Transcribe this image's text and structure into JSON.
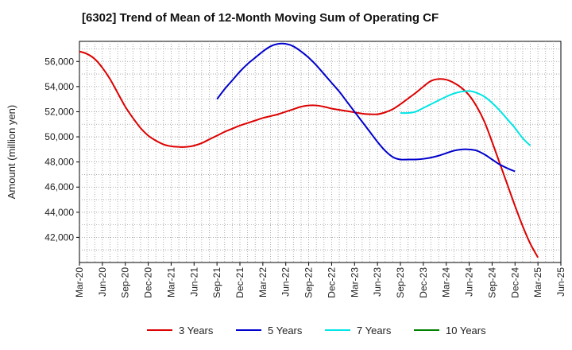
{
  "chart_data": {
    "type": "line",
    "title": "[6302]  Trend of Mean of 12-Month Moving Sum of Operating CF",
    "xlabel": "",
    "ylabel": "Amount (million yen)",
    "ylim": [
      40000,
      57600
    ],
    "yticks": [
      42000,
      44000,
      46000,
      48000,
      50000,
      52000,
      54000,
      56000
    ],
    "ytick_labels": [
      "42,000",
      "44,000",
      "46,000",
      "48,000",
      "50,000",
      "52,000",
      "54,000",
      "56,000"
    ],
    "x_months": [
      "Mar-20",
      "Apr-20",
      "May-20",
      "Jun-20",
      "Jul-20",
      "Aug-20",
      "Sep-20",
      "Oct-20",
      "Nov-20",
      "Dec-20",
      "Jan-21",
      "Feb-21",
      "Mar-21",
      "Apr-21",
      "May-21",
      "Jun-21",
      "Jul-21",
      "Aug-21",
      "Sep-21",
      "Oct-21",
      "Nov-21",
      "Dec-21",
      "Jan-22",
      "Feb-22",
      "Mar-22",
      "Apr-22",
      "May-22",
      "Jun-22",
      "Jul-22",
      "Aug-22",
      "Sep-22",
      "Oct-22",
      "Nov-22",
      "Dec-22",
      "Jan-23",
      "Feb-23",
      "Mar-23",
      "Apr-23",
      "May-23",
      "Jun-23",
      "Jul-23",
      "Aug-23",
      "Sep-23",
      "Oct-23",
      "Nov-23",
      "Dec-23",
      "Jan-24",
      "Feb-24",
      "Mar-24",
      "Apr-24",
      "May-24",
      "Jun-24",
      "Jul-24",
      "Aug-24",
      "Sep-24",
      "Oct-24",
      "Nov-24",
      "Dec-24",
      "Jan-25",
      "Feb-25",
      "Mar-25",
      "Apr-25",
      "May-25",
      "Jun-25"
    ],
    "tick_labels": [
      "Mar-20",
      "Jun-20",
      "Sep-20",
      "Dec-20",
      "Mar-21",
      "Jun-21",
      "Sep-21",
      "Dec-21",
      "Mar-22",
      "Jun-22",
      "Sep-22",
      "Dec-22",
      "Mar-23",
      "Jun-23",
      "Sep-23",
      "Dec-23",
      "Mar-24",
      "Jun-24",
      "Sep-24",
      "Dec-24",
      "Mar-25",
      "Jun-25"
    ],
    "series": [
      {
        "name": "3 Years",
        "color": "#dd0000",
        "start_index": 0,
        "values": [
          56800,
          56600,
          56200,
          55500,
          54600,
          53500,
          52400,
          51500,
          50700,
          50100,
          49700,
          49400,
          49250,
          49200,
          49200,
          49300,
          49500,
          49800,
          50100,
          50400,
          50650,
          50900,
          51100,
          51300,
          51500,
          51650,
          51800,
          52000,
          52200,
          52400,
          52500,
          52500,
          52400,
          52250,
          52150,
          52050,
          51950,
          51850,
          51800,
          51800,
          51950,
          52200,
          52600,
          53050,
          53500,
          54000,
          54450,
          54600,
          54550,
          54300,
          53900,
          53300,
          52400,
          51200,
          49600,
          47900,
          46200,
          44500,
          42900,
          41500,
          40400
        ]
      },
      {
        "name": "5 Years",
        "color": "#0000cc",
        "start_index": 18,
        "values": [
          53000,
          53800,
          54500,
          55200,
          55800,
          56300,
          56800,
          57200,
          57400,
          57400,
          57200,
          56800,
          56300,
          55700,
          55000,
          54300,
          53600,
          52800,
          52000,
          51200,
          50400,
          49600,
          48900,
          48400,
          48200,
          48200,
          48200,
          48250,
          48350,
          48500,
          48700,
          48900,
          49000,
          49000,
          48900,
          48600,
          48200,
          47800,
          47500,
          47250
        ]
      },
      {
        "name": "7 Years",
        "color": "#00e5e5",
        "start_index": 42,
        "values": [
          51900,
          51900,
          52000,
          52300,
          52600,
          52900,
          53200,
          53450,
          53600,
          53650,
          53500,
          53200,
          52700,
          52100,
          51400,
          50700,
          49900,
          49300
        ]
      },
      {
        "name": "10 Years",
        "color": "#008000",
        "start_index": 0,
        "values": []
      }
    ],
    "grid": true,
    "legend_position": "bottom-center"
  }
}
